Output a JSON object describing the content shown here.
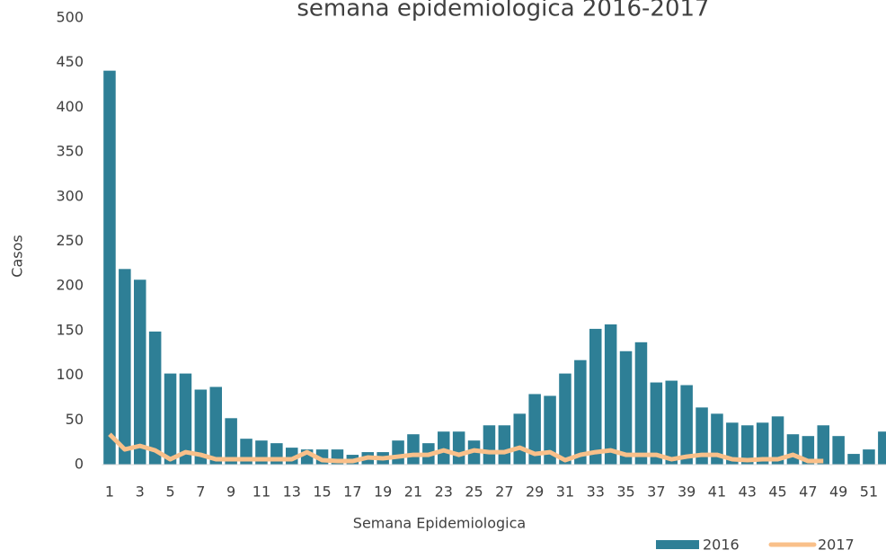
{
  "chart_data": {
    "type": "bar_line",
    "title": "semana epidemiologica 2016-2017",
    "x_label": "Semana Epidemiologica",
    "y_label": "Casos",
    "categories": [
      "1",
      null,
      "3",
      null,
      "5",
      null,
      "7",
      null,
      "9",
      null,
      "11",
      null,
      "13",
      null,
      "15",
      null,
      "17",
      null,
      "19",
      null,
      "21",
      null,
      "23",
      null,
      "25",
      null,
      "27",
      null,
      "29",
      null,
      "31",
      null,
      "33",
      null,
      "35",
      null,
      "37",
      null,
      "39",
      null,
      "41",
      null,
      "43",
      null,
      "45",
      null,
      "47",
      null,
      "49",
      null,
      "51",
      null
    ],
    "series": [
      {
        "name": "2016",
        "type": "bar",
        "color": "#2e7f96",
        "values": [
          441,
          219,
          207,
          149,
          102,
          102,
          84,
          87,
          52,
          29,
          27,
          24,
          19,
          17,
          17,
          17,
          11,
          14,
          14,
          27,
          34,
          24,
          37,
          37,
          27,
          44,
          44,
          57,
          79,
          77,
          102,
          117,
          152,
          157,
          127,
          137,
          92,
          94,
          89,
          64,
          57,
          47,
          44,
          47,
          54,
          34,
          32,
          44,
          32,
          12,
          17,
          37
        ]
      },
      {
        "name": "2017",
        "type": "line",
        "color": "#f9c08a",
        "values": [
          34,
          17,
          21,
          16,
          6,
          14,
          11,
          6,
          6,
          6,
          6,
          6,
          6,
          14,
          5,
          4,
          4,
          8,
          7,
          9,
          11,
          11,
          16,
          11,
          16,
          14,
          14,
          19,
          12,
          14,
          5,
          11,
          14,
          16,
          11,
          11,
          11,
          6,
          9,
          11,
          11,
          6,
          5,
          6,
          6,
          11,
          4,
          4,
          null,
          null,
          null,
          null
        ]
      }
    ],
    "ylim": [
      0,
      500
    ],
    "yticks": [
      0,
      50,
      100,
      150,
      200,
      250,
      300,
      350,
      400,
      450,
      500
    ],
    "legend": "bottom-right",
    "grid": false
  }
}
